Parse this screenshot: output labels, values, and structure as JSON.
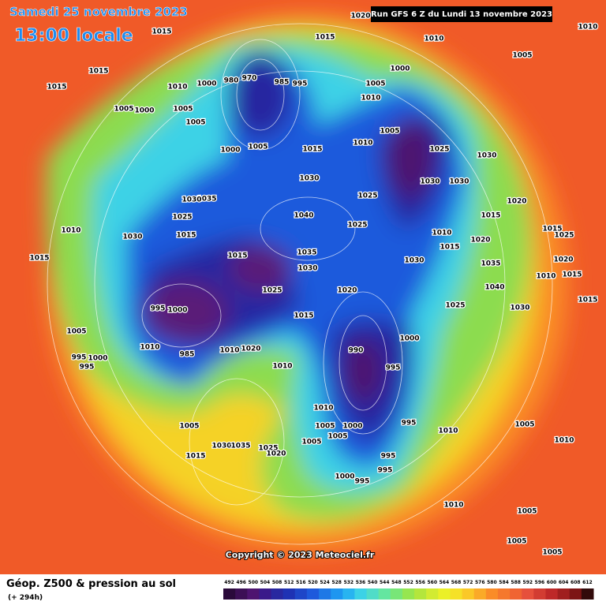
{
  "header": {
    "date": "Samedi 25 novembre 2023",
    "time": "13:00 locale",
    "run": "Run GFS 6 Z du Lundi 13 novembre 2023"
  },
  "footer": {
    "title": "Géop. Z500 & pression au sol",
    "lead": "(+ 294h)",
    "copyright": "Copyright © 2023 Meteociel.fr"
  },
  "colorbar": {
    "ticks": [
      492,
      496,
      500,
      504,
      508,
      512,
      516,
      520,
      524,
      528,
      532,
      536,
      540,
      544,
      548,
      552,
      556,
      560,
      564,
      568,
      572,
      576,
      580,
      584,
      588,
      592,
      596,
      600,
      604,
      608,
      612
    ],
    "colors": [
      "#2a0a3a",
      "#3c0f55",
      "#4e1470",
      "#3a1a8a",
      "#2828a0",
      "#1e32b4",
      "#1e46c8",
      "#1e5adc",
      "#1e78e6",
      "#1e96f0",
      "#28b4f0",
      "#3cd2e6",
      "#50dcc8",
      "#64e6a0",
      "#78e678",
      "#96e650",
      "#b4e63c",
      "#d2eb32",
      "#ebf028",
      "#f5e128",
      "#fac828",
      "#faaa28",
      "#fa8c28",
      "#f5782d",
      "#f06432",
      "#e6503c",
      "#d23c32",
      "#be2828",
      "#a01e1e",
      "#7d1414",
      "#320a0a"
    ]
  },
  "pressure_labels": [
    1015,
    1020,
    1015,
    1010,
    1010,
    1005,
    1015,
    1015,
    1010,
    1000,
    980,
    970,
    985,
    995,
    1000,
    1005,
    1010,
    1005,
    1000,
    1005,
    1005,
    1005,
    1010,
    1025,
    1030,
    1000,
    1005,
    1015,
    1030,
    1030,
    1030,
    1025,
    1020,
    1035,
    1030,
    1025,
    1040,
    1025,
    1015,
    1010,
    1030,
    1015,
    1010,
    1015,
    1020,
    1015,
    1015,
    1035,
    1030,
    1030,
    1035,
    1025,
    1020,
    1040,
    995,
    1000,
    1015,
    1025,
    1030,
    1005,
    1010,
    990,
    1000,
    985,
    1010,
    1020,
    995,
    1000,
    995,
    1010,
    995,
    1010,
    1005,
    1005,
    1000,
    995,
    1010,
    1005,
    1005,
    1030,
    1035,
    1025,
    1020,
    1015,
    995,
    995,
    1000,
    995,
    1010,
    1005,
    1005,
    1005,
    1010,
    1005,
    1015,
    1015,
    1025,
    1020,
    1010,
    1015
  ]
}
